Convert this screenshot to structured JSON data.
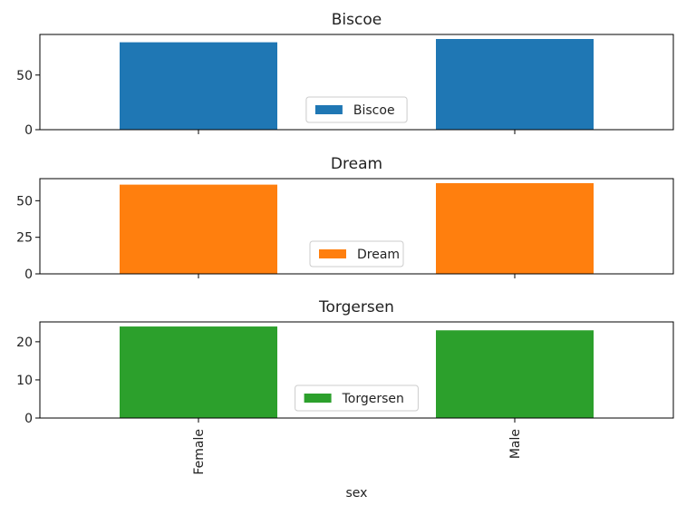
{
  "chart_data": [
    {
      "type": "bar",
      "title": "Biscoe",
      "categories": [
        "Female",
        "Male"
      ],
      "series": [
        {
          "name": "Biscoe",
          "values": [
            80,
            83
          ],
          "color": "#1f77b4"
        }
      ],
      "yticks": [
        0,
        50
      ],
      "ylim": [
        0,
        87.15
      ],
      "legend_position": "lower center"
    },
    {
      "type": "bar",
      "title": "Dream",
      "categories": [
        "Female",
        "Male"
      ],
      "series": [
        {
          "name": "Dream",
          "values": [
            61,
            62
          ],
          "color": "#ff7f0e"
        }
      ],
      "yticks": [
        0,
        25,
        50
      ],
      "ylim": [
        0,
        65.1
      ],
      "legend_position": "lower center"
    },
    {
      "type": "bar",
      "title": "Torgersen",
      "categories": [
        "Female",
        "Male"
      ],
      "series": [
        {
          "name": "Torgersen",
          "values": [
            24,
            23
          ],
          "color": "#2ca02c"
        }
      ],
      "yticks": [
        0,
        10,
        20
      ],
      "ylim": [
        0,
        25.2
      ],
      "legend_position": "lower center"
    }
  ],
  "shared_x": {
    "categories": [
      "Female",
      "Male"
    ],
    "xlabel": "sex"
  }
}
